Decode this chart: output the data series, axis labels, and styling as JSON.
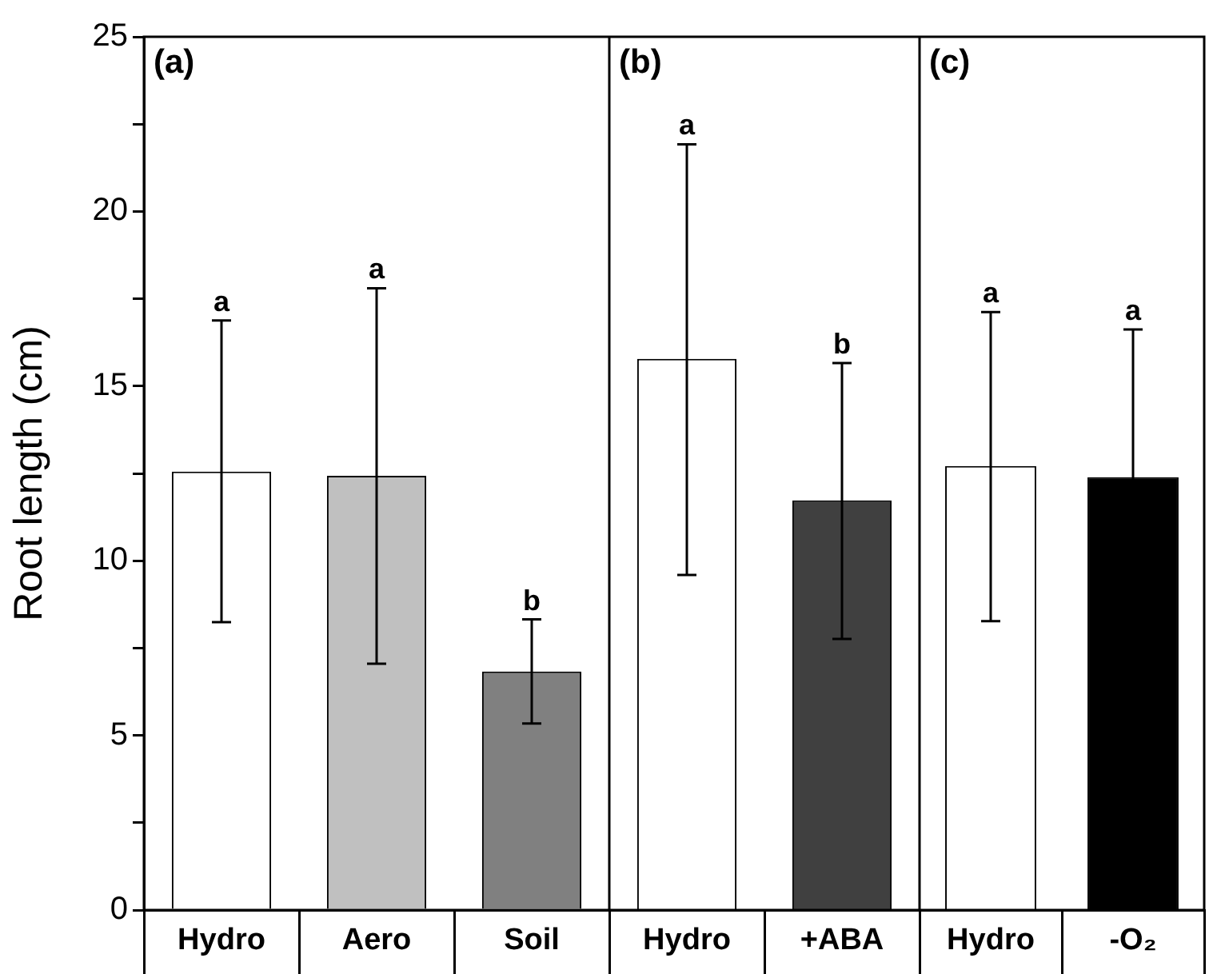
{
  "chart_data": [
    {
      "type": "bar",
      "title": "(a)",
      "ylabel": "Root length (cm)",
      "categories": [
        "Hydro",
        "Aero",
        "Soil"
      ],
      "values": [
        12.55,
        12.43,
        6.83
      ],
      "colors": [
        "#ffffff",
        "#c0c0c0",
        "#808080"
      ],
      "errors": [
        [
          8.24,
          16.88
        ],
        [
          7.05,
          17.8
        ],
        [
          5.34,
          8.32
        ]
      ],
      "ylim": [
        0,
        25
      ],
      "yticks": [
        0,
        {
          "value": 2.5,
          "label": null
        },
        5,
        {
          "value": 7.5,
          "label": null
        },
        10,
        {
          "value": 12.5,
          "label": null
        },
        15,
        {
          "value": 17.5,
          "label": null
        },
        20,
        {
          "value": 22.5,
          "label": null
        },
        25
      ],
      "annotations": [
        {
          "text": "a",
          "x": "Hydro",
          "y": 16.88
        },
        {
          "text": "a",
          "x": "Aero",
          "y": 17.8
        },
        {
          "text": "b",
          "x": "Soil",
          "y": 8.32
        }
      ],
      "legend": false
    },
    {
      "type": "bar",
      "title": "(b)",
      "categories": [
        "Hydro",
        "+ABA"
      ],
      "values": [
        15.78,
        11.73
      ],
      "colors": [
        "#ffffff",
        "#404040"
      ],
      "errors": [
        [
          9.59,
          21.92
        ],
        [
          7.76,
          15.66
        ]
      ],
      "ylim": [
        0,
        25
      ],
      "tick_labels": "x",
      "annotations": [
        {
          "text": "a",
          "x": "Hydro",
          "y": 21.92
        },
        {
          "text": "b",
          "x": "+ABA",
          "y": 15.66
        }
      ],
      "legend": false
    },
    {
      "type": "bar",
      "title": "(c)",
      "categories": [
        "Hydro",
        "-O₂"
      ],
      "values": [
        12.71,
        12.39
      ],
      "colors": [
        "#ffffff",
        "#000000"
      ],
      "errors": [
        [
          8.27,
          17.12
        ],
        4.23
      ],
      "ylim": [
        0,
        25
      ],
      "tick_labels": "x",
      "annotations": [
        {
          "text": "a",
          "x": "Hydro",
          "y": 17.12
        },
        {
          "text": "a",
          "x": "-O₂",
          "y": 16.62
        }
      ],
      "legend": false
    }
  ]
}
